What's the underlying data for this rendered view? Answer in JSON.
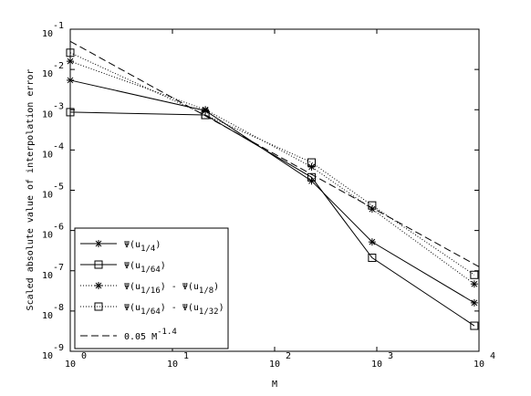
{
  "chart_data": {
    "type": "line",
    "log_x": true,
    "log_y": true,
    "xlabel": "M",
    "ylabel": "Scaled absolute value of interpolation error",
    "xlim": [
      1,
      10000
    ],
    "ylim": [
      1e-09,
      0.1
    ],
    "xticks": [
      {
        "value": 1,
        "label": "10",
        "exponent": "0"
      },
      {
        "value": 10,
        "label": "10",
        "exponent": "1"
      },
      {
        "value": 100,
        "label": "10",
        "exponent": "2"
      },
      {
        "value": 1000,
        "label": "10",
        "exponent": "3"
      },
      {
        "value": 10000,
        "label": "10",
        "exponent": "4"
      }
    ],
    "yticks": [
      {
        "value": 1e-09,
        "label": "10",
        "exponent": "-9"
      },
      {
        "value": 1e-08,
        "label": "10",
        "exponent": "-8"
      },
      {
        "value": 1e-07,
        "label": "10",
        "exponent": "-7"
      },
      {
        "value": 1e-06,
        "label": "10",
        "exponent": "-6"
      },
      {
        "value": 1e-05,
        "label": "10",
        "exponent": "-5"
      },
      {
        "value": 0.0001,
        "label": "10",
        "exponent": "-4"
      },
      {
        "value": 0.001,
        "label": "10",
        "exponent": "-3"
      },
      {
        "value": 0.01,
        "label": "10",
        "exponent": "-2"
      },
      {
        "value": 0.1,
        "label": "10",
        "exponent": "-1"
      }
    ],
    "legend": "lower left",
    "series": [
      {
        "name_parts": [
          {
            "text": "Ψ(u"
          },
          {
            "text": "1/4",
            "script": "sub"
          },
          {
            "text": ")"
          }
        ],
        "color": "#000000",
        "line": "solid",
        "marker": "star",
        "x": [
          1,
          21,
          230,
          900,
          9000
        ],
        "values": [
          0.0054,
          0.00095,
          1.7e-05,
          5.2e-07,
          1.6e-08
        ]
      },
      {
        "name_parts": [
          {
            "text": "Ψ(u"
          },
          {
            "text": "1/64",
            "script": "sub"
          },
          {
            "text": ")"
          }
        ],
        "color": "#000000",
        "line": "solid",
        "marker": "square",
        "x": [
          1,
          21,
          230,
          900,
          9000
        ],
        "values": [
          0.00087,
          0.00074,
          2.1e-05,
          2.1e-07,
          4.3e-09
        ]
      },
      {
        "name_parts": [
          {
            "text": "Ψ(u"
          },
          {
            "text": "1/16",
            "script": "sub"
          },
          {
            "text": ") - Ψ(u"
          },
          {
            "text": "1/8",
            "script": "sub"
          },
          {
            "text": ")"
          }
        ],
        "color": "#000000",
        "line": "dotted",
        "marker": "star",
        "x": [
          1,
          21,
          230,
          900,
          9000
        ],
        "values": [
          0.016,
          0.001,
          3.8e-05,
          3.4e-06,
          4.7e-08
        ]
      },
      {
        "name_parts": [
          {
            "text": "Ψ(u"
          },
          {
            "text": "1/64",
            "script": "sub"
          },
          {
            "text": ") - Ψ(u"
          },
          {
            "text": "1/32",
            "script": "sub"
          },
          {
            "text": ")"
          }
        ],
        "color": "#000000",
        "line": "dotted",
        "marker": "square",
        "x": [
          1,
          21,
          230,
          900,
          9000
        ],
        "values": [
          0.026,
          0.00074,
          4.9e-05,
          4.2e-06,
          7.9e-08
        ]
      },
      {
        "name_parts": [
          {
            "text": "0.05 M"
          },
          {
            "text": "-1.4",
            "script": "sup"
          }
        ],
        "color": "#000000",
        "line": "dashed",
        "marker": "none",
        "x": [
          1,
          10000
        ],
        "values": [
          0.05,
          1.26e-07
        ]
      }
    ]
  }
}
